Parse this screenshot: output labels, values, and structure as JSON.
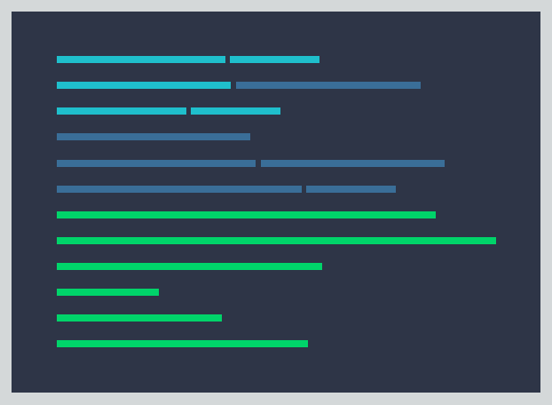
{
  "colors": {
    "background": "#d4d8d9",
    "panel": "#2e3547",
    "cyan": "#1fbfcc",
    "steel": "#3a6e98",
    "green": "#00d46a"
  },
  "rows": [
    {
      "segments": [
        {
          "color": "cyan"
        },
        {
          "color": "cyan"
        }
      ]
    },
    {
      "segments": [
        {
          "color": "cyan"
        },
        {
          "color": "steel"
        }
      ]
    },
    {
      "segments": [
        {
          "color": "cyan"
        },
        {
          "color": "cyan"
        }
      ]
    },
    {
      "segments": [
        {
          "color": "steel"
        }
      ]
    },
    {
      "segments": [
        {
          "color": "steel"
        },
        {
          "color": "steel"
        }
      ]
    },
    {
      "segments": [
        {
          "color": "steel"
        },
        {
          "color": "steel"
        }
      ]
    },
    {
      "segments": [
        {
          "color": "green"
        }
      ]
    },
    {
      "segments": [
        {
          "color": "green"
        }
      ]
    },
    {
      "segments": [
        {
          "color": "green"
        }
      ]
    },
    {
      "segments": [
        {
          "color": "green"
        }
      ]
    },
    {
      "segments": [
        {
          "color": "green"
        }
      ]
    },
    {
      "segments": [
        {
          "color": "green"
        }
      ]
    }
  ]
}
